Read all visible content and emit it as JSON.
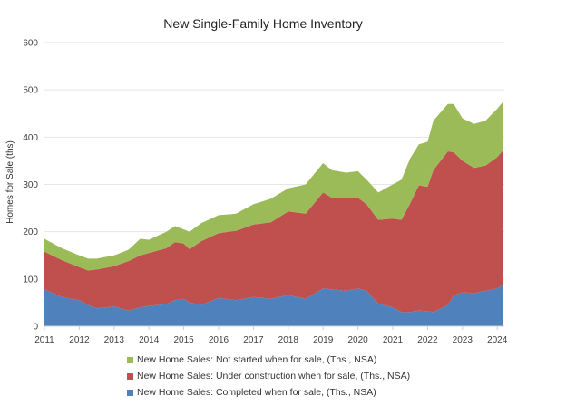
{
  "chart_data": {
    "type": "area",
    "stacked": true,
    "title": "New Single-Family Home Inventory",
    "xlabel": "",
    "ylabel": "Homes for Sale (ths)",
    "ylim": [
      0,
      600
    ],
    "yticks": [
      "0",
      "100",
      "200",
      "300",
      "400",
      "500",
      "600"
    ],
    "xticks": [
      "2011",
      "2012",
      "2013",
      "2014",
      "2015",
      "2016",
      "2017",
      "2018",
      "2019",
      "2020",
      "2021",
      "2022",
      "2023",
      "2024"
    ],
    "grid": true,
    "legend_position": "bottom",
    "x": [
      "2011-01",
      "2011-07",
      "2012-01",
      "2012-04",
      "2012-07",
      "2013-01",
      "2013-06",
      "2013-10",
      "2014-01",
      "2014-07",
      "2014-10",
      "2015-01",
      "2015-03",
      "2015-07",
      "2016-01",
      "2016-07",
      "2017-01",
      "2017-07",
      "2018-01",
      "2018-07",
      "2019-01",
      "2019-04",
      "2019-09",
      "2020-01",
      "2020-04",
      "2020-08",
      "2021-01",
      "2021-04",
      "2021-07",
      "2021-10",
      "2022-01",
      "2022-03",
      "2022-08",
      "2022-10",
      "2023-01",
      "2023-05",
      "2023-09",
      "2024-01",
      "2024-03"
    ],
    "series": [
      {
        "name": "New Home Sales: Completed when for sale, (Ths., NSA)",
        "color": "#4f81bd",
        "values": [
          78,
          62,
          55,
          45,
          38,
          42,
          33,
          40,
          43,
          47,
          55,
          58,
          50,
          45,
          60,
          55,
          62,
          58,
          66,
          58,
          80,
          78,
          75,
          80,
          75,
          48,
          40,
          30,
          30,
          33,
          32,
          30,
          45,
          65,
          72,
          70,
          75,
          80,
          88
        ]
      },
      {
        "name": "New Home Sales: Under construction when for sale, (Ths., NSA)",
        "color": "#c0504d",
        "values": [
          80,
          78,
          70,
          73,
          82,
          85,
          105,
          110,
          112,
          118,
          123,
          117,
          113,
          135,
          137,
          147,
          153,
          162,
          177,
          180,
          203,
          194,
          197,
          192,
          183,
          177,
          188,
          195,
          230,
          265,
          263,
          300,
          325,
          303,
          278,
          265,
          265,
          278,
          284
        ]
      },
      {
        "name": "New Home Sales: Not started when for sale, (Ths., NSA)",
        "color": "#9bbb59",
        "values": [
          27,
          25,
          25,
          25,
          23,
          23,
          24,
          35,
          28,
          35,
          34,
          30,
          37,
          38,
          38,
          36,
          43,
          50,
          49,
          62,
          62,
          58,
          53,
          56,
          52,
          58,
          72,
          85,
          95,
          87,
          95,
          105,
          100,
          102,
          90,
          93,
          95,
          102,
          103
        ]
      }
    ]
  }
}
